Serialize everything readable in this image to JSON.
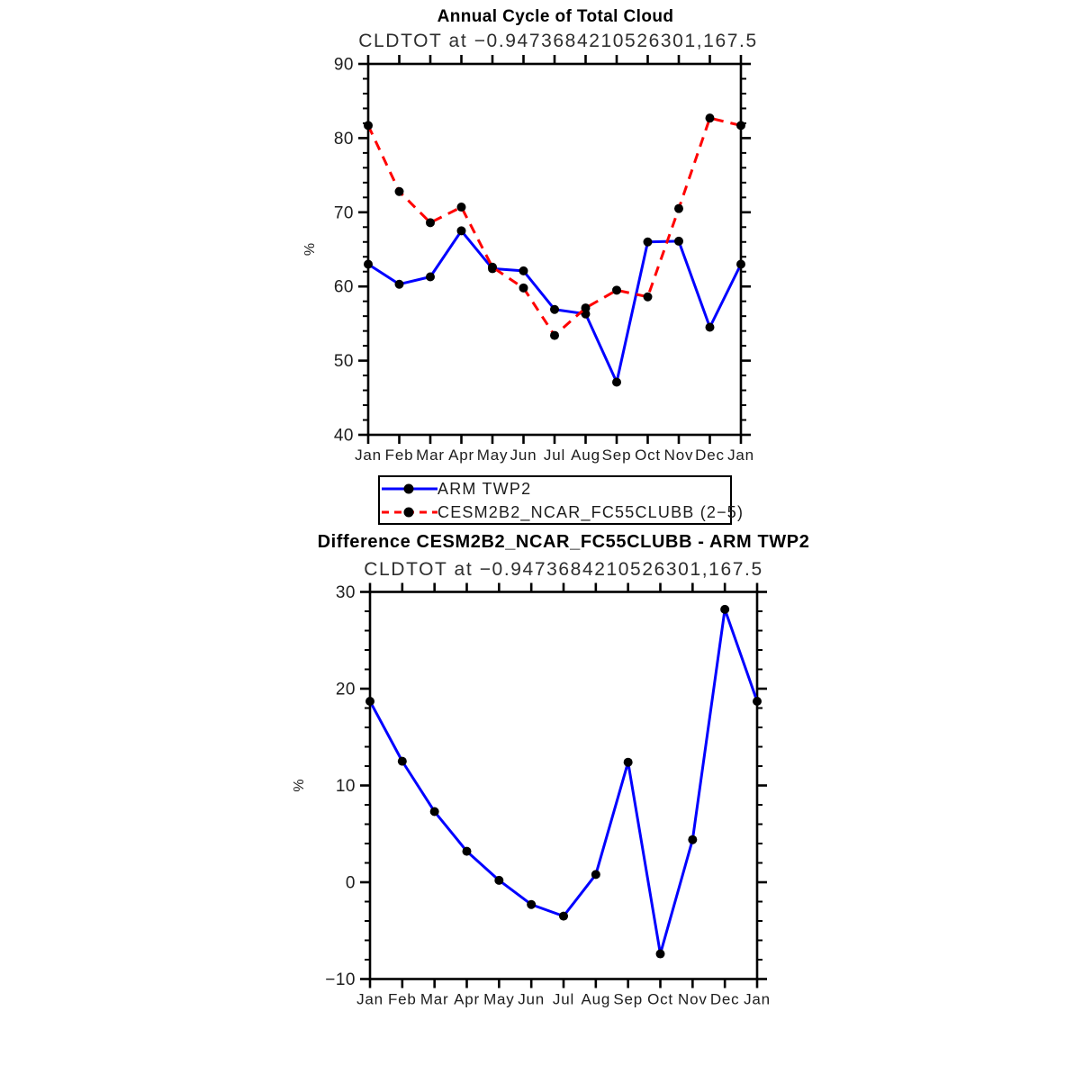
{
  "page": {
    "background": "#ffffff"
  },
  "colors": {
    "obs_line": "#0000ff",
    "model_line": "#ff0000",
    "marker": "#000000",
    "axis": "#000000",
    "tick_label": "#1d1d1d",
    "subtitle_text": "#2e2e2e"
  },
  "legend": {
    "entries": [
      {
        "label": "ARM TWP2",
        "color": "#0000ff",
        "dash": "solid",
        "marker": "circle"
      },
      {
        "label": "CESM2B2_NCAR_FC55CLUBB (2−5)",
        "color": "#ff0000",
        "dash": "dashed",
        "marker": "circle"
      }
    ]
  },
  "chart_data": [
    {
      "type": "line",
      "title": "Annual Cycle of Total Cloud",
      "subtitle": "CLDTOT at −0.9473684210526301,167.5",
      "xlabel": "",
      "ylabel": "%",
      "categories": [
        "Jan",
        "Feb",
        "Mar",
        "Apr",
        "May",
        "Jun",
        "Jul",
        "Aug",
        "Sep",
        "Oct",
        "Nov",
        "Dec",
        "Jan"
      ],
      "ylim": [
        40,
        90
      ],
      "ytick_major": 10,
      "ytick_minor": 2,
      "grid": false,
      "legend_position": "below-chart",
      "series": [
        {
          "name": "ARM TWP2",
          "color": "#0000ff",
          "dash": "solid",
          "marker": "circle",
          "values": [
            63.0,
            60.3,
            61.3,
            67.5,
            62.4,
            62.1,
            56.9,
            56.3,
            47.1,
            66.0,
            66.1,
            54.5,
            63.0
          ]
        },
        {
          "name": "CESM2B2_NCAR_FC55CLUBB (2−5)",
          "color": "#ff0000",
          "dash": "dashed",
          "marker": "circle",
          "values": [
            81.7,
            72.8,
            68.6,
            70.7,
            62.6,
            59.8,
            53.4,
            57.1,
            59.5,
            58.6,
            70.5,
            82.7,
            81.7
          ]
        }
      ]
    },
    {
      "type": "line",
      "title": "Difference CESM2B2_NCAR_FC55CLUBB - ARM TWP2",
      "subtitle": "CLDTOT at −0.9473684210526301,167.5",
      "xlabel": "",
      "ylabel": "%",
      "categories": [
        "Jan",
        "Feb",
        "Mar",
        "Apr",
        "May",
        "Jun",
        "Jul",
        "Aug",
        "Sep",
        "Oct",
        "Nov",
        "Dec",
        "Jan"
      ],
      "ylim": [
        -10,
        30
      ],
      "ytick_major": 10,
      "ytick_minor": 2,
      "grid": false,
      "legend_position": "none",
      "series": [
        {
          "name": "CESM2B2_NCAR_FC55CLUBB minus ARM TWP2",
          "color": "#0000ff",
          "dash": "solid",
          "marker": "circle",
          "values": [
            18.7,
            12.5,
            7.3,
            3.2,
            0.2,
            -2.3,
            -3.5,
            0.8,
            12.4,
            -7.4,
            4.4,
            28.2,
            18.7
          ]
        }
      ]
    }
  ]
}
